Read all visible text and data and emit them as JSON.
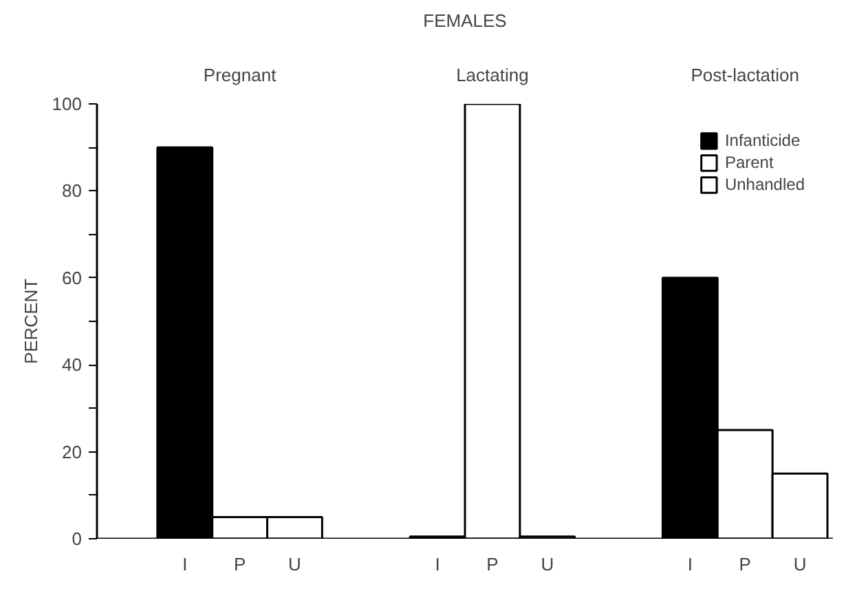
{
  "chart_data": {
    "type": "bar",
    "title": "FEMALES",
    "ylabel": "PERCENT",
    "categories": [
      "I",
      "P",
      "U",
      "I",
      "P",
      "U",
      "I",
      "P",
      "U"
    ],
    "series": [
      {
        "name": "Infanticide",
        "color": "#000000",
        "values": [
          90,
          null,
          null,
          0.5,
          null,
          null,
          60,
          null,
          null
        ]
      },
      {
        "name": "Parent",
        "color": "#ffffff",
        "values": [
          null,
          5,
          null,
          null,
          100,
          null,
          null,
          25,
          null
        ]
      },
      {
        "name": "Unhandled",
        "color": "#ffffff",
        "values": [
          null,
          null,
          5,
          null,
          null,
          0.5,
          null,
          null,
          15
        ]
      }
    ],
    "annotations": [
      "Pregnant",
      "Lactating",
      "Post-lactation"
    ],
    "ylim": [
      0,
      100
    ],
    "yticks": [
      0,
      {
        "value": 10,
        "label": null
      },
      20,
      {
        "value": 30,
        "label": null
      },
      40,
      {
        "value": 50,
        "label": null
      },
      60,
      {
        "value": 70,
        "label": null
      },
      80,
      {
        "value": 90,
        "label": null
      },
      100
    ],
    "grid": false,
    "legend": "top right"
  }
}
